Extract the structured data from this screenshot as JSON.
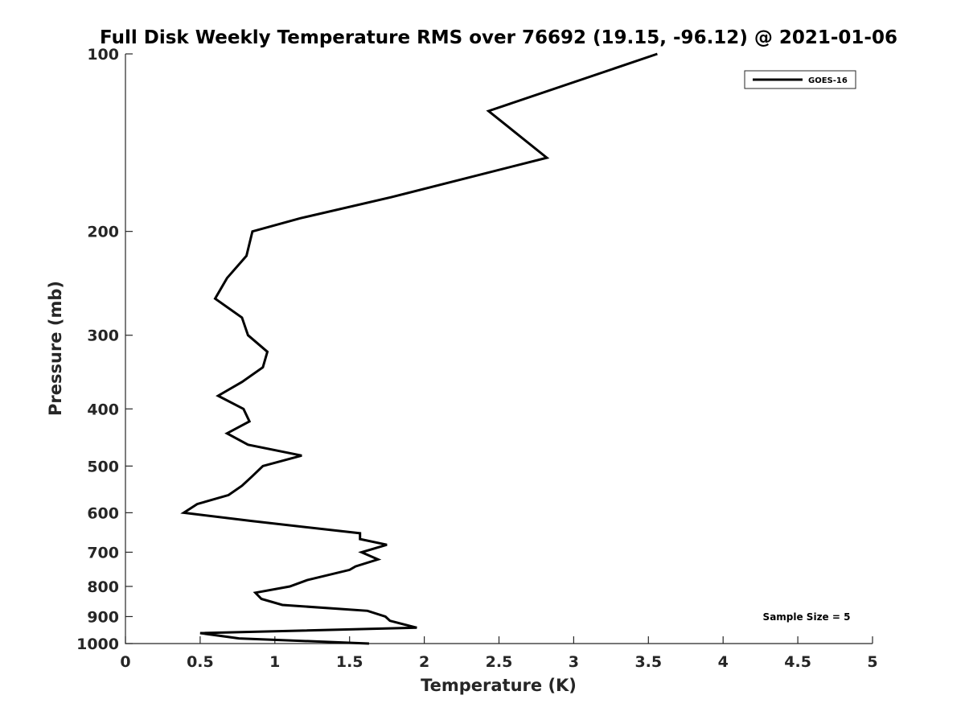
{
  "chart_data": {
    "type": "line",
    "title": "Full Disk Weekly Temperature RMS over 76692 (19.15, -96.12) @ 2021-01-06",
    "xlabel": "Temperature (K)",
    "ylabel": "Pressure (mb)",
    "xlim": [
      0,
      5
    ],
    "ylim": [
      100,
      1000
    ],
    "y_scale": "log",
    "y_reversed": true,
    "grid": false,
    "legend_position": "top-right",
    "x_ticks": [
      "0",
      "0.5",
      "1",
      "1.5",
      "2",
      "2.5",
      "3",
      "3.5",
      "4",
      "4.5",
      "5"
    ],
    "y_ticks": [
      "100",
      "200",
      "300",
      "400",
      "500",
      "600",
      "700",
      "800",
      "900",
      "1000"
    ],
    "annotation": "Sample Size = 5",
    "series": [
      {
        "name": "GOES-16",
        "color": "#000000",
        "points": [
          [
            3.56,
            100
          ],
          [
            2.43,
            125
          ],
          [
            2.82,
            150
          ],
          [
            1.78,
            175
          ],
          [
            1.17,
            190
          ],
          [
            0.85,
            200
          ],
          [
            0.81,
            220
          ],
          [
            0.68,
            240
          ],
          [
            0.6,
            260
          ],
          [
            0.78,
            280
          ],
          [
            0.82,
            300
          ],
          [
            0.95,
            320
          ],
          [
            0.92,
            340
          ],
          [
            0.78,
            360
          ],
          [
            0.62,
            380
          ],
          [
            0.79,
            400
          ],
          [
            0.83,
            420
          ],
          [
            0.68,
            440
          ],
          [
            0.82,
            460
          ],
          [
            1.18,
            480
          ],
          [
            0.92,
            500
          ],
          [
            0.85,
            520
          ],
          [
            0.78,
            540
          ],
          [
            0.69,
            560
          ],
          [
            0.48,
            580
          ],
          [
            0.39,
            600
          ],
          [
            0.85,
            620
          ],
          [
            1.57,
            650
          ],
          [
            1.57,
            665
          ],
          [
            1.75,
            680
          ],
          [
            1.58,
            700
          ],
          [
            1.69,
            720
          ],
          [
            1.54,
            740
          ],
          [
            1.5,
            750
          ],
          [
            1.22,
            780
          ],
          [
            1.1,
            800
          ],
          [
            0.87,
            820
          ],
          [
            0.91,
            840
          ],
          [
            1.05,
            860
          ],
          [
            1.62,
            880
          ],
          [
            1.74,
            900
          ],
          [
            1.77,
            915
          ],
          [
            1.95,
            940
          ],
          [
            0.5,
            960
          ],
          [
            0.76,
            980
          ],
          [
            1.63,
            1000
          ]
        ]
      }
    ]
  }
}
